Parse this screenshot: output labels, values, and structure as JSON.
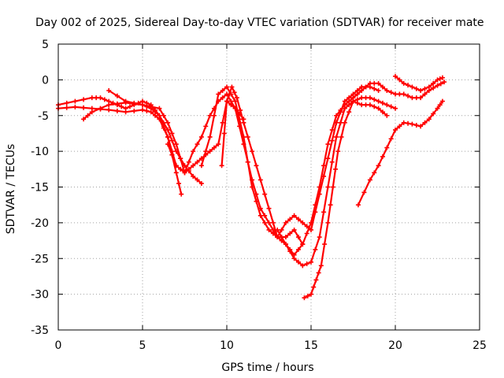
{
  "chart_data": {
    "type": "line",
    "title": "Day 002 of 2025, Sidereal Day-to-day VTEC variation (SDTVAR) for receiver mate",
    "xlabel": "GPS time / hours",
    "ylabel": "SDTVAR / TECUs",
    "xlim": [
      0,
      25
    ],
    "ylim": [
      -35,
      5
    ],
    "xticks": [
      0,
      5,
      10,
      15,
      20,
      25
    ],
    "yticks": [
      5,
      0,
      -5,
      -10,
      -15,
      -20,
      -25,
      -30,
      -35
    ],
    "grid": true,
    "marker": "plus",
    "color": "#ff0000",
    "series": [
      {
        "x": [
          0,
          1,
          2,
          2.5,
          3,
          3.5,
          4,
          4.5,
          5,
          5.5,
          6,
          6.5,
          7
        ],
        "y": [
          -3.5,
          -3,
          -2.5,
          -2.5,
          -3,
          -3.5,
          -4,
          -3.5,
          -3,
          -3.5,
          -5,
          -8,
          -12
        ]
      },
      {
        "x": [
          0,
          1,
          2,
          3,
          4,
          5,
          5.5,
          6,
          6.5,
          7,
          7.3
        ],
        "y": [
          -4,
          -3.8,
          -4,
          -4.2,
          -4.5,
          -4.2,
          -4.5,
          -5.5,
          -8,
          -13,
          -16
        ]
      },
      {
        "x": [
          1.5,
          2,
          3,
          4,
          5,
          5.5,
          6,
          6.5,
          7,
          7.5,
          8,
          8.5
        ],
        "y": [
          -5.5,
          -4.5,
          -3.5,
          -3.2,
          -3.5,
          -4,
          -5,
          -7,
          -10,
          -12,
          -13.5,
          -14.5
        ]
      },
      {
        "x": [
          3,
          4,
          5,
          6,
          6.5,
          7,
          7.5,
          8,
          8.5,
          9,
          9.5,
          10,
          10.5,
          11
        ],
        "y": [
          -1.5,
          -3,
          -3.5,
          -4,
          -6,
          -9,
          -13,
          -12,
          -11,
          -10,
          -9,
          -3,
          -4,
          -5.5
        ]
      },
      {
        "x": [
          6.5,
          7,
          7.5,
          8,
          8.5,
          9,
          9.5,
          10,
          10.5,
          11,
          11.5,
          12,
          12.5,
          13,
          13.5,
          14,
          14.5
        ],
        "y": [
          -9,
          -12,
          -13,
          -10,
          -8,
          -5,
          -3,
          -2,
          -4,
          -9,
          -14,
          -18,
          -20,
          -22,
          -22,
          -21,
          -23
        ]
      },
      {
        "x": [
          8.5,
          9,
          9.5,
          10,
          10.5,
          11,
          11.5,
          12,
          12.5,
          13,
          13.5,
          14,
          14.5,
          15,
          15.5,
          16,
          16.5,
          17,
          17.5,
          18,
          18.5,
          19
        ],
        "y": [
          -12,
          -8,
          -2,
          -1,
          -3,
          -8,
          -15,
          -19,
          -21,
          -22,
          -20,
          -19,
          -20,
          -21,
          -16,
          -11,
          -6,
          -3,
          -2,
          -1,
          -1,
          -1.5
        ]
      },
      {
        "x": [
          9.7,
          10,
          10.3,
          10.6,
          11,
          11.5,
          12,
          12.5,
          13,
          13.5,
          14,
          14.5,
          15,
          15.5,
          16,
          16.5,
          17,
          17.5,
          18,
          18.5,
          19,
          19.5
        ],
        "y": [
          -12,
          -3,
          -1,
          -2.5,
          -6,
          -10,
          -14,
          -18,
          -22,
          -23,
          -25,
          -26,
          -25.5,
          -22,
          -15,
          -8,
          -4,
          -3,
          -3.5,
          -3.5,
          -4,
          -5
        ]
      },
      {
        "x": [
          13,
          13.5,
          14,
          14.5,
          15,
          15.5,
          16,
          16.5,
          17,
          17.5,
          18,
          18.5,
          19,
          19.5,
          20,
          20.5,
          21,
          21.5,
          22,
          22.5,
          22.9
        ],
        "y": [
          -21,
          -23,
          -24.5,
          -23,
          -20,
          -15,
          -9,
          -5,
          -3.5,
          -2.5,
          -1.5,
          -0.5,
          -0.5,
          -1.5,
          -2,
          -2,
          -2.5,
          -2.5,
          -1.5,
          -0.8,
          -0.3
        ]
      },
      {
        "x": [
          14.6,
          15,
          15.3,
          15.6,
          16,
          16.3,
          16.6,
          17,
          17.5,
          18,
          18.5,
          19,
          19.5,
          20
        ],
        "y": [
          -30.5,
          -30,
          -28,
          -26,
          -20,
          -15,
          -10,
          -6,
          -3,
          -2.5,
          -2.5,
          -3,
          -3.5,
          -4
        ]
      },
      {
        "x": [
          17.8,
          18.5,
          19,
          19.5,
          20,
          20.5,
          21,
          21.5,
          22,
          22.5,
          22.8
        ],
        "y": [
          -17.5,
          -14,
          -12,
          -9.5,
          -7,
          -6,
          -6.2,
          -6.5,
          -5.5,
          -4,
          -3
        ]
      },
      {
        "x": [
          20,
          20.5,
          21,
          21.5,
          22,
          22.5,
          22.8
        ],
        "y": [
          0.5,
          -0.5,
          -1,
          -1.5,
          -1,
          0,
          0.3
        ]
      }
    ]
  }
}
